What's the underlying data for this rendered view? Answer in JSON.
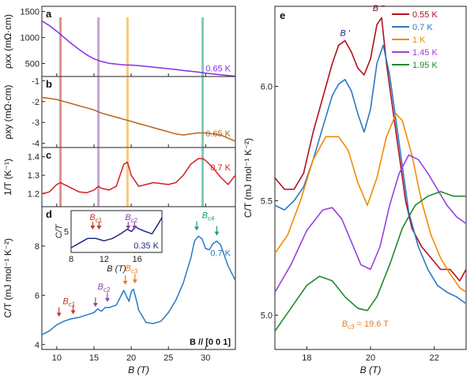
{
  "chart_data": [
    {
      "panel": "a",
      "type": "line",
      "ylabel": "ρxx (mΩ·cm)",
      "ylim": [
        250,
        1600
      ],
      "yticks": [
        "500",
        "1000",
        "1500"
      ],
      "xlim": [
        8,
        34
      ],
      "series": [
        {
          "name": "0.65 K",
          "color": "#8a2be2",
          "x": [
            8,
            9,
            10,
            11,
            12,
            13,
            14,
            15,
            16,
            17,
            18,
            19,
            20,
            21,
            22,
            23,
            24,
            25,
            26,
            27,
            28,
            29,
            30,
            31,
            32,
            33,
            34
          ],
          "y": [
            1320,
            1230,
            1120,
            1000,
            880,
            770,
            670,
            590,
            540,
            505,
            490,
            475,
            470,
            460,
            445,
            430,
            415,
            400,
            385,
            365,
            350,
            335,
            315,
            300,
            285,
            270,
            255
          ]
        }
      ]
    },
    {
      "panel": "b",
      "type": "line",
      "ylabel": "ρxy (mΩ·cm)",
      "ylim": [
        -4.2,
        -0.8
      ],
      "yticks": [
        "-1",
        "-2",
        "-3",
        "-4"
      ],
      "xlim": [
        8,
        34
      ],
      "series": [
        {
          "name": "0.65 K",
          "color": "#b5651d",
          "x": [
            8,
            9,
            10,
            11,
            12,
            13,
            14,
            15,
            16,
            17,
            18,
            19,
            20,
            21,
            22,
            23,
            24,
            25,
            26,
            27,
            28,
            29,
            30,
            31,
            32,
            33,
            34
          ],
          "y": [
            -1.8,
            -1.85,
            -1.9,
            -2.0,
            -2.1,
            -2.2,
            -2.3,
            -2.4,
            -2.55,
            -2.65,
            -2.75,
            -2.85,
            -2.95,
            -3.05,
            -3.15,
            -3.25,
            -3.35,
            -3.45,
            -3.55,
            -3.6,
            -3.55,
            -3.5,
            -3.5,
            -3.55,
            -3.6,
            -3.75,
            -3.9
          ]
        }
      ]
    },
    {
      "panel": "c",
      "type": "line",
      "ylabel": "1/T (K⁻¹)",
      "ylim": [
        1.13,
        1.45
      ],
      "yticks": [
        "1.2",
        "1.3",
        "1.4"
      ],
      "xlim": [
        8,
        34
      ],
      "series": [
        {
          "name": "0.7 K",
          "color": "#d42020",
          "x": [
            8,
            9,
            10,
            10.5,
            11,
            12,
            13,
            14,
            15,
            15.6,
            16,
            17,
            18,
            18.5,
            19,
            19.5,
            20,
            21,
            22,
            23,
            24,
            25,
            26,
            27,
            28,
            29,
            29.6,
            30,
            31,
            32,
            33,
            34
          ],
          "y": [
            1.2,
            1.21,
            1.25,
            1.26,
            1.25,
            1.23,
            1.21,
            1.205,
            1.22,
            1.24,
            1.23,
            1.22,
            1.24,
            1.3,
            1.36,
            1.37,
            1.3,
            1.24,
            1.25,
            1.26,
            1.255,
            1.25,
            1.26,
            1.3,
            1.36,
            1.39,
            1.39,
            1.38,
            1.34,
            1.29,
            1.25,
            1.3
          ]
        }
      ]
    },
    {
      "panel": "d",
      "type": "line",
      "ylabel": "C/T (mJ mol⁻¹ K⁻²)",
      "xlabel": "B (T)",
      "xlim": [
        8,
        34
      ],
      "xticks": [
        "10",
        "15",
        "20",
        "25",
        "30"
      ],
      "ylim": [
        3.8,
        9.6
      ],
      "yticks": [
        "4",
        "6",
        "8"
      ],
      "series": [
        {
          "name": "0.7 K",
          "color": "#2b78c5",
          "x": [
            8,
            9,
            10,
            11,
            12,
            13,
            14,
            15,
            15.5,
            16,
            16.5,
            17,
            18,
            18.5,
            19,
            19.3,
            19.7,
            20,
            20.3,
            20.7,
            21,
            22,
            23,
            24,
            25,
            26,
            27,
            28,
            28.5,
            29,
            29.5,
            30,
            30.5,
            31,
            31.5,
            32,
            33,
            34
          ],
          "y": [
            4.4,
            4.55,
            4.8,
            4.95,
            5.05,
            5.1,
            5.2,
            5.3,
            5.45,
            5.35,
            5.5,
            5.5,
            5.6,
            5.9,
            6.2,
            6.0,
            5.75,
            6.15,
            6.25,
            5.8,
            5.4,
            4.9,
            4.85,
            4.95,
            5.3,
            5.8,
            6.5,
            7.5,
            8.2,
            8.4,
            8.3,
            7.9,
            7.85,
            8.1,
            8.2,
            8.05,
            7.2,
            6.6
          ]
        }
      ],
      "inset": {
        "xlabel": "B (T)",
        "ylabel": "C/T",
        "xlim": [
          8,
          19
        ],
        "xticks": [
          "8",
          "12",
          "16"
        ],
        "yticks": [
          "5"
        ],
        "label": "0.35 K",
        "color": "#202a80",
        "x": [
          8,
          9,
          10,
          11,
          12,
          13,
          14,
          14.8,
          15.3,
          15.8,
          16.3,
          17,
          17.8,
          18.5,
          19
        ],
        "y": [
          4.3,
          4.5,
          4.7,
          4.7,
          4.6,
          4.7,
          4.9,
          5.1,
          5.0,
          5.2,
          5.1,
          5.0,
          4.9,
          5.3,
          5.6
        ]
      },
      "annotations": {
        "Bc1": "B",
        "Bc1_sub": "c1",
        "Bc2": "B",
        "Bc2_sub": "c2",
        "Bc3": "B",
        "Bc3_sub": "c3",
        "Bc4": "B",
        "Bc4_sub": "c4",
        "field_dir": "B // [0 0 1]"
      }
    },
    {
      "panel": "e",
      "type": "line",
      "ylabel": "C/T (mJ mol⁻¹ K⁻²)",
      "xlabel": "B (T)",
      "xlim": [
        17,
        23
      ],
      "xticks": [
        "18",
        "20",
        "22"
      ],
      "ylim": [
        4.85,
        6.35
      ],
      "yticks": [
        "5.0",
        "5.5",
        "6.0"
      ],
      "annotations": {
        "Bprime": "B '",
        "Bdouble": "B ''",
        "Bc3_note": "B",
        "Bc3_note_sub": "c3",
        "Bc3_note_value": "= 19.6 T"
      },
      "series": [
        {
          "name": "0.55 K",
          "color": "#b01020",
          "x": [
            17,
            17.3,
            17.6,
            17.9,
            18.2,
            18.5,
            18.8,
            19.0,
            19.2,
            19.4,
            19.6,
            19.8,
            20.0,
            20.2,
            20.35,
            20.5,
            20.7,
            20.9,
            21.1,
            21.3,
            21.6,
            21.9,
            22.2,
            22.5,
            22.8,
            23
          ],
          "y": [
            5.6,
            5.55,
            5.55,
            5.62,
            5.8,
            5.95,
            6.1,
            6.18,
            6.2,
            6.15,
            6.08,
            6.05,
            6.12,
            6.27,
            6.3,
            6.1,
            5.9,
            5.7,
            5.5,
            5.38,
            5.3,
            5.25,
            5.2,
            5.2,
            5.15,
            5.2
          ]
        },
        {
          "name": "0.7 K",
          "color": "#2b78c5",
          "x": [
            17,
            17.3,
            17.6,
            17.9,
            18.2,
            18.5,
            18.8,
            19.0,
            19.2,
            19.4,
            19.6,
            19.8,
            20.0,
            20.2,
            20.4,
            20.6,
            20.8,
            21.0,
            21.2,
            21.5,
            21.8,
            22.1,
            22.4,
            22.7,
            23
          ],
          "y": [
            5.48,
            5.46,
            5.5,
            5.56,
            5.68,
            5.82,
            5.96,
            6.01,
            6.03,
            5.98,
            5.88,
            5.8,
            5.9,
            6.1,
            6.18,
            6.05,
            5.85,
            5.65,
            5.45,
            5.3,
            5.2,
            5.13,
            5.1,
            5.08,
            5.05
          ]
        },
        {
          "name": "1 K",
          "color": "#f08c00",
          "x": [
            17,
            17.4,
            17.8,
            18.2,
            18.6,
            19.0,
            19.3,
            19.6,
            19.9,
            20.2,
            20.5,
            20.8,
            21.0,
            21.3,
            21.6,
            21.9,
            22.2,
            22.5,
            22.8,
            23
          ],
          "y": [
            5.27,
            5.35,
            5.5,
            5.68,
            5.78,
            5.78,
            5.72,
            5.58,
            5.48,
            5.6,
            5.78,
            5.88,
            5.85,
            5.7,
            5.5,
            5.35,
            5.25,
            5.18,
            5.12,
            5.1
          ]
        },
        {
          "name": "1.45 K",
          "color": "#9b3fe0",
          "x": [
            17,
            17.5,
            18.0,
            18.5,
            18.8,
            19.1,
            19.4,
            19.7,
            20.0,
            20.3,
            20.6,
            20.9,
            21.2,
            21.5,
            21.8,
            22.1,
            22.4,
            22.7,
            23
          ],
          "y": [
            5.1,
            5.22,
            5.37,
            5.46,
            5.47,
            5.42,
            5.32,
            5.22,
            5.2,
            5.3,
            5.48,
            5.62,
            5.7,
            5.68,
            5.62,
            5.55,
            5.48,
            5.43,
            5.4
          ]
        },
        {
          "name": "1.95 K",
          "color": "#1f8a2e",
          "x": [
            17,
            17.5,
            18.0,
            18.4,
            18.8,
            19.2,
            19.6,
            19.9,
            20.2,
            20.6,
            21.0,
            21.4,
            21.8,
            22.2,
            22.6,
            23
          ],
          "y": [
            4.93,
            5.03,
            5.13,
            5.17,
            5.15,
            5.08,
            5.03,
            5.02,
            5.08,
            5.22,
            5.38,
            5.48,
            5.52,
            5.54,
            5.52,
            5.52
          ]
        }
      ]
    }
  ]
}
